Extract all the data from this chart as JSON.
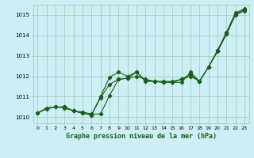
{
  "title": "Graphe pression niveau de la mer (hPa)",
  "bg_color": "#cceef4",
  "grid_color": "#aaccbb",
  "line_color": "#1a5c1a",
  "xlim": [
    -0.5,
    23.5
  ],
  "ylim": [
    1009.7,
    1015.5
  ],
  "yticks": [
    1010,
    1011,
    1012,
    1013,
    1014,
    1015
  ],
  "xticks": [
    0,
    1,
    2,
    3,
    4,
    5,
    6,
    7,
    8,
    9,
    10,
    11,
    12,
    13,
    14,
    15,
    16,
    17,
    18,
    19,
    20,
    21,
    22,
    23
  ],
  "series1": {
    "x": [
      0,
      1,
      2,
      3,
      4,
      5,
      6,
      7,
      8,
      9,
      10,
      11,
      12,
      13,
      14,
      15,
      16,
      17,
      18,
      19,
      20,
      21,
      22,
      23
    ],
    "y": [
      1010.2,
      1010.45,
      1010.5,
      1010.5,
      1010.3,
      1010.25,
      1010.15,
      1010.15,
      1011.05,
      1011.85,
      1011.9,
      1012.2,
      1011.75,
      1011.75,
      1011.75,
      1011.75,
      1011.85,
      1012.0,
      1011.75,
      1012.45,
      1013.25,
      1014.1,
      1015.05,
      1015.25
    ]
  },
  "series2": {
    "x": [
      0,
      1,
      2,
      3,
      4,
      5,
      6,
      7,
      8,
      9,
      10,
      11,
      12,
      13,
      14,
      15,
      16,
      17,
      18,
      19,
      20,
      21,
      22,
      23
    ],
    "y": [
      1010.2,
      1010.4,
      1010.5,
      1010.45,
      1010.3,
      1010.2,
      1010.1,
      1010.95,
      1011.6,
      1011.85,
      1011.9,
      1012.0,
      1011.85,
      1011.75,
      1011.7,
      1011.7,
      1011.85,
      1012.1,
      1011.75,
      1012.45,
      1013.2,
      1014.05,
      1015.0,
      1015.2
    ]
  },
  "series3": {
    "x": [
      3,
      4,
      5,
      6,
      7,
      8,
      9,
      10,
      11,
      12,
      13,
      14,
      15,
      16,
      17,
      18,
      19,
      20,
      21,
      22,
      23
    ],
    "y": [
      1010.5,
      1010.3,
      1010.2,
      1010.1,
      1011.0,
      1011.95,
      1012.2,
      1012.0,
      1012.2,
      1011.8,
      1011.75,
      1011.7,
      1011.7,
      1011.7,
      1012.2,
      1011.75,
      1012.45,
      1013.25,
      1014.15,
      1015.1,
      1015.3
    ]
  }
}
